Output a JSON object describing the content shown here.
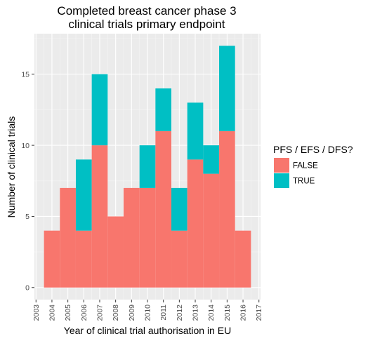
{
  "chart_data": {
    "type": "bar",
    "stacked": true,
    "title": [
      "Completed breast cancer phase 3",
      "clinical trials primary endpoint"
    ],
    "xlabel": "Year of clinical trial authorisation in EU",
    "ylabel": "Number of clinical trials",
    "categories": [
      2004,
      2005,
      2006,
      2007,
      2008,
      2009,
      2010,
      2011,
      2012,
      2013,
      2014,
      2015,
      2016
    ],
    "series": [
      {
        "name": "FALSE",
        "color": "#F8766D",
        "values": [
          4,
          7,
          4,
          10,
          5,
          7,
          7,
          11,
          4,
          9,
          8,
          11,
          4
        ]
      },
      {
        "name": "TRUE",
        "color": "#00BFC4",
        "values": [
          0,
          0,
          5,
          5,
          0,
          0,
          3,
          3,
          3,
          4,
          2,
          6,
          0
        ]
      }
    ],
    "xlim": [
      2002.9,
      2017.1
    ],
    "ylim": [
      -0.85,
      17.85
    ],
    "x_ticks": [
      "2003",
      "2004",
      "2005",
      "2006",
      "2007",
      "2008",
      "2009",
      "2010",
      "2011",
      "2012",
      "2013",
      "2014",
      "2015",
      "2016",
      "2017"
    ],
    "y_ticks": [
      "0",
      "5",
      "10",
      "15"
    ],
    "legend": {
      "title": "PFS / EFS / DFS?",
      "position": "right"
    },
    "panel_background": "#EBEBEB",
    "grid": true
  }
}
